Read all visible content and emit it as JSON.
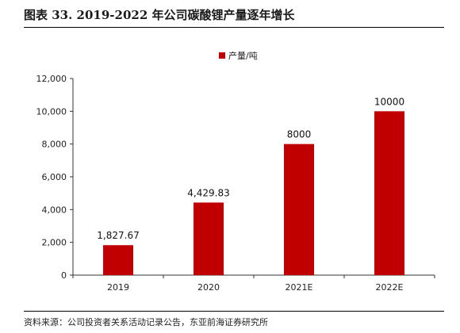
{
  "header": {
    "title": "图表 33. 2019-2022 年公司碳酸锂产量逐年增长"
  },
  "footer": {
    "source": "资料来源：公司投资者关系活动记录公告，东亚前海证券研究所"
  },
  "chart_data": {
    "type": "bar",
    "categories": [
      "2019",
      "2020",
      "2021E",
      "2022E"
    ],
    "series": [
      {
        "name": "产量/吨",
        "values": [
          1827.67,
          4429.83,
          8000,
          10000
        ],
        "labels": [
          "1,827.67",
          "4,429.83",
          "8000",
          "10000"
        ],
        "color": "#C00000"
      }
    ],
    "ylim": [
      0,
      12000
    ],
    "yticks": [
      0,
      2000,
      4000,
      6000,
      8000,
      10000,
      12000
    ],
    "ytick_labels": [
      "0",
      "2,000",
      "4,000",
      "6,000",
      "8,000",
      "10,000",
      "12,000"
    ],
    "legend": "top-center",
    "grid": false,
    "xlabel": "",
    "ylabel": ""
  }
}
